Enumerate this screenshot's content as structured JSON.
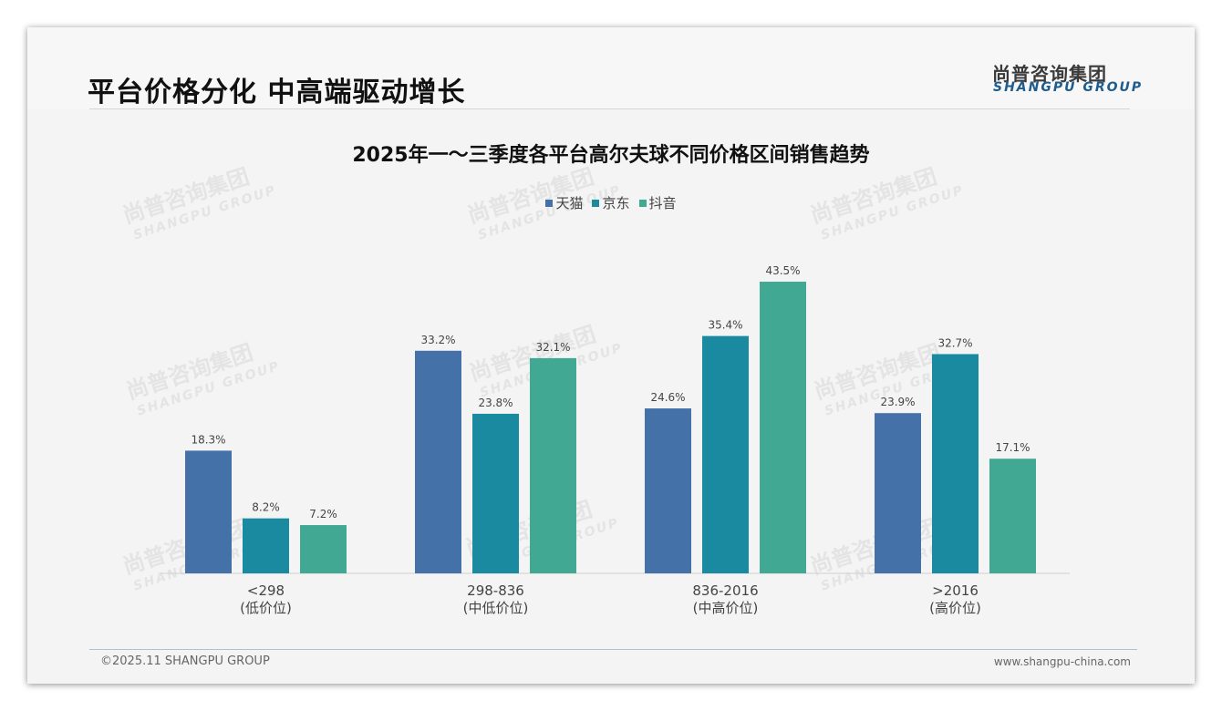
{
  "header": {
    "title": "平台价格分化 中高端驱动增长",
    "logo_cn": "尚普咨询集团",
    "logo_en": "SHANGPU GROUP"
  },
  "watermark": {
    "cn": "尚普咨询集团",
    "en": "SHANGPU GROUP"
  },
  "footer": {
    "copyright": "©2025.11 SHANGPU GROUP",
    "website": "www.shangpu-china.com"
  },
  "chart_data": {
    "type": "bar",
    "title": "2025年一～三季度各平台高尔夫球不同价格区间销售趋势",
    "xlabel": "",
    "ylabel": "",
    "ylim": [
      0,
      45
    ],
    "grid": false,
    "legend_position": "top-center",
    "categories": [
      {
        "range": "<298",
        "tier": "(低价位)"
      },
      {
        "range": "298-836",
        "tier": "(中低价位)"
      },
      {
        "range": "836-2016",
        "tier": "(中高价位)"
      },
      {
        "range": ">2016",
        "tier": "(高价位)"
      }
    ],
    "series": [
      {
        "name": "天猫",
        "color": "#4472a8",
        "values": [
          18.3,
          33.2,
          24.6,
          23.9
        ],
        "labels": [
          "18.3%",
          "33.2%",
          "24.6%",
          "23.9%"
        ]
      },
      {
        "name": "京东",
        "color": "#1a8aa0",
        "values": [
          8.2,
          23.8,
          35.4,
          32.7
        ],
        "labels": [
          "8.2%",
          "23.8%",
          "35.4%",
          "32.7%"
        ]
      },
      {
        "name": "抖音",
        "color": "#40a893",
        "values": [
          7.2,
          32.1,
          43.5,
          17.1
        ],
        "labels": [
          "7.2%",
          "32.1%",
          "43.5%",
          "17.1%"
        ]
      }
    ]
  }
}
